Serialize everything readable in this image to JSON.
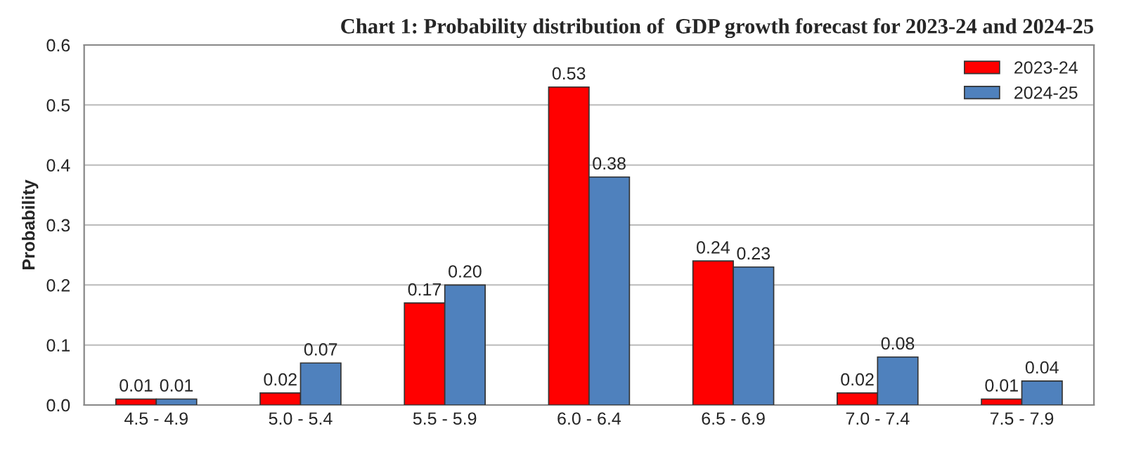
{
  "chart_data": {
    "type": "bar",
    "title": "Chart 1: Probability distribution of  GDP growth forecast for 2023-24 and 2024-25",
    "ylabel": "Probability",
    "categories": [
      "4.5 - 4.9",
      "5.0 - 5.4",
      "5.5 - 5.9",
      "6.0 - 6.4",
      "6.5 - 6.9",
      "7.0 - 7.4",
      "7.5 - 7.9"
    ],
    "series": [
      {
        "name": "2023-24",
        "color": "#ff0000",
        "values": [
          0.01,
          0.02,
          0.17,
          0.53,
          0.24,
          0.02,
          0.01
        ],
        "value_labels": [
          "0.01",
          "0.02",
          "0.17",
          "0.53",
          "0.24",
          "0.02",
          "0.01"
        ]
      },
      {
        "name": "2024-25",
        "color": "#4f81bd",
        "values": [
          0.01,
          0.07,
          0.2,
          0.38,
          0.23,
          0.08,
          0.04
        ],
        "value_labels": [
          "0.01",
          "0.07",
          "0.20",
          "0.38",
          "0.23",
          "0.08",
          "0.04"
        ]
      }
    ],
    "ylim": [
      0,
      0.6
    ],
    "yticks": [
      {
        "value": 0,
        "label": "0.0"
      },
      0.1,
      0.2,
      0.3,
      0.4,
      0.5,
      0.6
    ],
    "grid": "y",
    "legend": "top right"
  }
}
